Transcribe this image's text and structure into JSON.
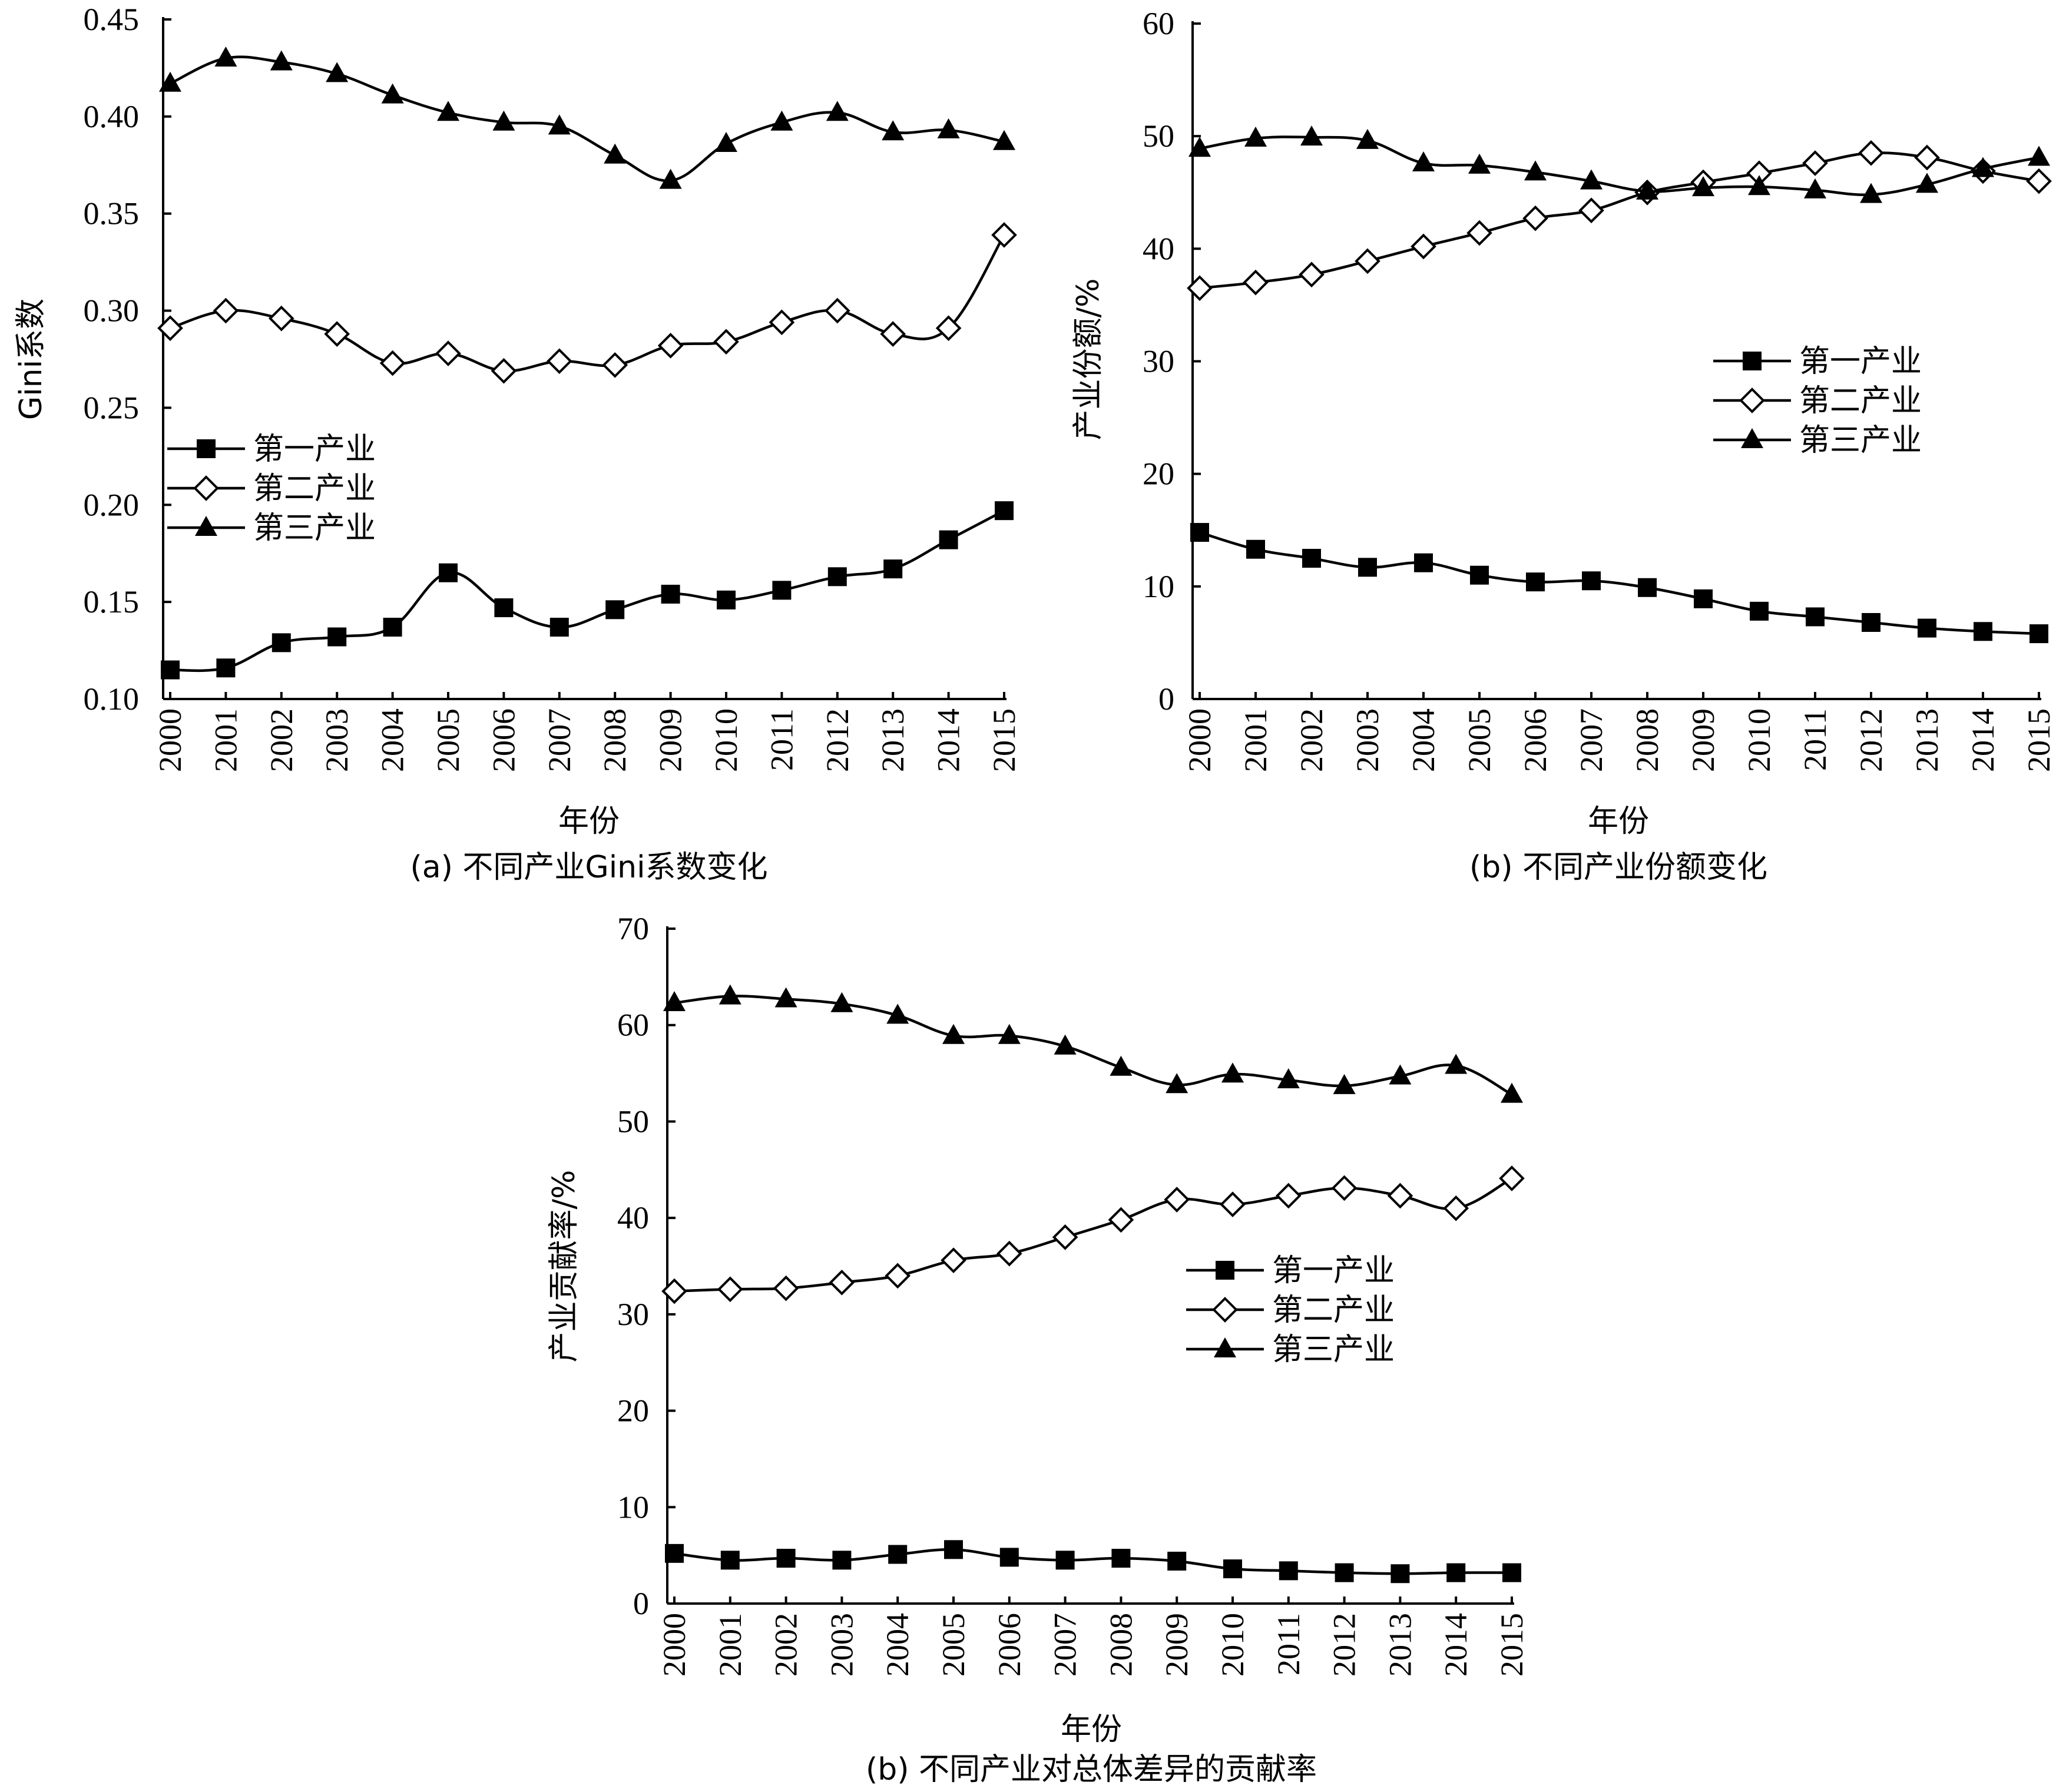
{
  "chart_data": [
    {
      "id": "a",
      "type": "line",
      "title": "(a) 不同产业Gini系数变化",
      "xlabel": "年份",
      "ylabel": "Gini系数",
      "x": [
        2000,
        2001,
        2002,
        2003,
        2004,
        2005,
        2006,
        2007,
        2008,
        2009,
        2010,
        2011,
        2012,
        2013,
        2014,
        2015
      ],
      "ylim": [
        0.1,
        0.45
      ],
      "yticks": [
        "0.10",
        "0.15",
        "0.20",
        "0.25",
        "0.30",
        "0.35",
        "0.40",
        "0.45"
      ],
      "grid": false,
      "legend_position": "middle-left",
      "series": [
        {
          "name": "第一产业",
          "marker": "filled-square",
          "values": [
            0.115,
            0.116,
            0.129,
            0.132,
            0.137,
            0.165,
            0.147,
            0.137,
            0.146,
            0.154,
            0.151,
            0.156,
            0.163,
            0.167,
            0.182,
            0.197
          ]
        },
        {
          "name": "第二产业",
          "marker": "open-diamond",
          "values": [
            0.291,
            0.3,
            0.296,
            0.288,
            0.273,
            0.278,
            0.269,
            0.274,
            0.272,
            0.282,
            0.284,
            0.294,
            0.3,
            0.288,
            0.291,
            0.339
          ]
        },
        {
          "name": "第三产业",
          "marker": "filled-triangle",
          "values": [
            0.417,
            0.43,
            0.428,
            0.422,
            0.411,
            0.402,
            0.397,
            0.395,
            0.38,
            0.367,
            0.386,
            0.397,
            0.402,
            0.392,
            0.393,
            0.387
          ]
        }
      ]
    },
    {
      "id": "b",
      "type": "line",
      "title": "(b) 不同产业份额变化",
      "xlabel": "年份",
      "ylabel": "产业份额/%",
      "x": [
        2000,
        2001,
        2002,
        2003,
        2004,
        2005,
        2006,
        2007,
        2008,
        2009,
        2010,
        2011,
        2012,
        2013,
        2014,
        2015
      ],
      "ylim": [
        0,
        60
      ],
      "yticks": [
        "0",
        "10",
        "20",
        "30",
        "40",
        "50",
        "60"
      ],
      "grid": false,
      "legend_position": "middle-right",
      "series": [
        {
          "name": "第一产业",
          "marker": "filled-square",
          "values": [
            14.8,
            13.3,
            12.5,
            11.7,
            12.1,
            11.0,
            10.4,
            10.5,
            9.9,
            8.9,
            7.8,
            7.3,
            6.8,
            6.3,
            6.0,
            5.8
          ]
        },
        {
          "name": "第二产业",
          "marker": "open-diamond",
          "values": [
            36.5,
            37.0,
            37.7,
            38.9,
            40.2,
            41.4,
            42.7,
            43.4,
            45.0,
            45.9,
            46.7,
            47.6,
            48.5,
            48.1,
            46.9,
            46.0
          ]
        },
        {
          "name": "第三产业",
          "marker": "filled-triangle",
          "values": [
            48.9,
            49.8,
            49.9,
            49.6,
            47.6,
            47.4,
            46.8,
            46.0,
            45.1,
            45.4,
            45.5,
            45.2,
            44.8,
            45.7,
            47.1,
            48.1
          ]
        }
      ]
    },
    {
      "id": "c",
      "type": "line",
      "title": "(b) 不同产业对总体差异的贡献率",
      "xlabel": "年份",
      "ylabel": "产业贡献率/%",
      "x": [
        2000,
        2001,
        2002,
        2003,
        2004,
        2005,
        2006,
        2007,
        2008,
        2009,
        2010,
        2011,
        2012,
        2013,
        2014,
        2015
      ],
      "ylim": [
        0,
        70
      ],
      "yticks": [
        "0",
        "10",
        "20",
        "30",
        "40",
        "50",
        "60",
        "70"
      ],
      "grid": false,
      "legend_position": "middle-right",
      "series": [
        {
          "name": "第一产业",
          "marker": "filled-square",
          "values": [
            5.2,
            4.5,
            4.7,
            4.5,
            5.1,
            5.6,
            4.8,
            4.5,
            4.7,
            4.4,
            3.6,
            3.4,
            3.2,
            3.1,
            3.2,
            3.2
          ]
        },
        {
          "name": "第二产业",
          "marker": "open-diamond",
          "values": [
            32.4,
            32.6,
            32.7,
            33.3,
            34.0,
            35.6,
            36.3,
            38.0,
            39.8,
            41.9,
            41.4,
            42.3,
            43.1,
            42.3,
            41.0,
            44.1
          ]
        },
        {
          "name": "第三产业",
          "marker": "filled-triangle",
          "values": [
            62.3,
            63.0,
            62.7,
            62.2,
            61.0,
            58.9,
            58.9,
            57.8,
            55.6,
            53.8,
            54.9,
            54.3,
            53.7,
            54.7,
            55.8,
            52.8
          ]
        }
      ]
    }
  ]
}
